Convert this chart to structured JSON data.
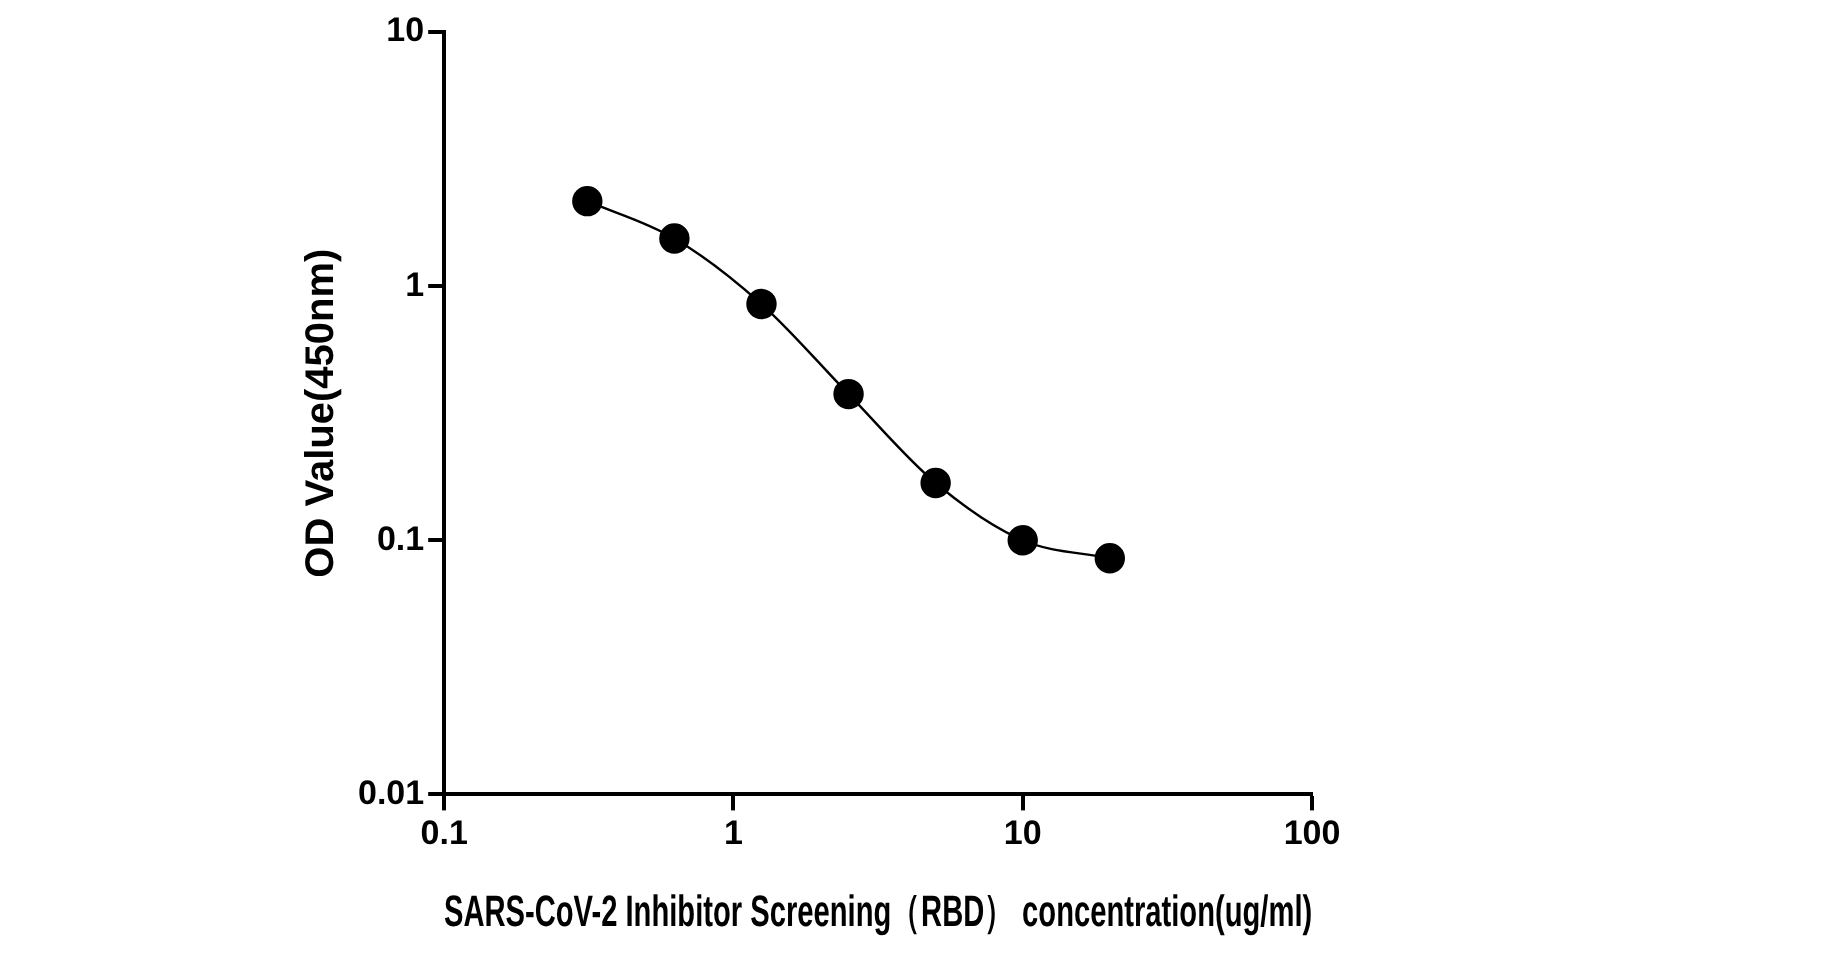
{
  "chart_data": {
    "type": "line",
    "xlabel": "SARS-CoV-2 Inhibitor Screening（RBD） concentration(ug/ml)",
    "ylabel": "OD Value(450nm)",
    "log": "xy",
    "x": [
      0.3125,
      0.625,
      1.25,
      2.5,
      5,
      10,
      20
    ],
    "series": [
      {
        "color": "#000000",
        "values": [
          2.16,
          1.54,
          0.85,
          0.376,
          0.168,
          0.1,
          0.085
        ]
      }
    ],
    "xlim": [
      0.1,
      100
    ],
    "xticks": [
      0.1,
      1,
      10,
      100
    ],
    "ylim": [
      0.01,
      10
    ],
    "yticks": [
      0.01,
      0.1,
      1,
      10
    ],
    "grid": false,
    "legend": false,
    "marker": "circle",
    "line_style": "solid"
  }
}
